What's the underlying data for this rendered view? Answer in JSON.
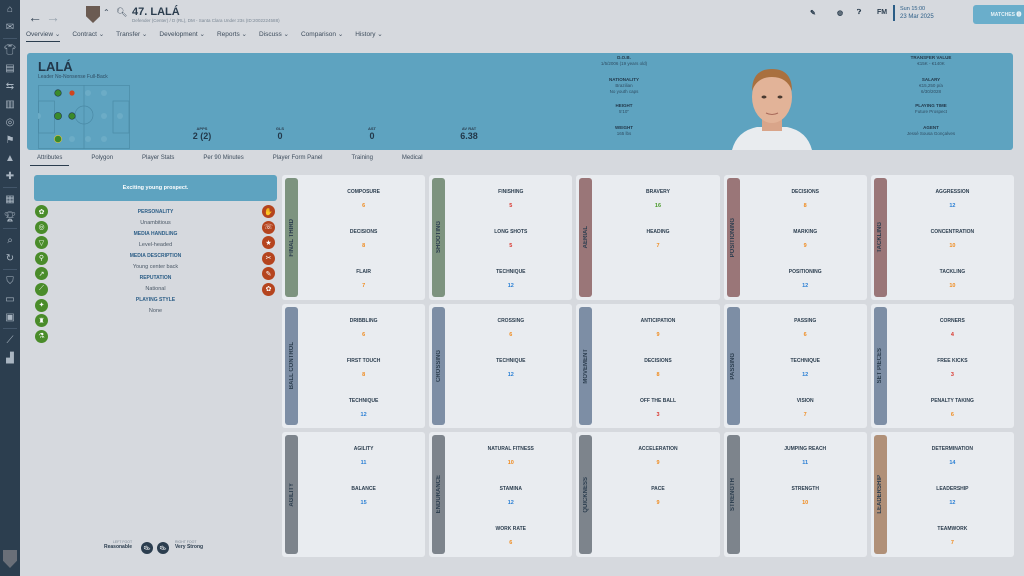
{
  "header": {
    "title": "47. LALÁ",
    "subtitle": "Defender (Center) / D (RL), DM - Santa Clara Under 23s (ID:2002224588)",
    "menu": [
      "Overview ⌄",
      "Contract ⌄",
      "Transfer ⌄",
      "Development ⌄",
      "Reports ⌄",
      "Discuss ⌄",
      "Comparison ⌄",
      "History ⌄"
    ],
    "fm": "FM",
    "time": "Sun 15:00",
    "date": "23 Mar 2025",
    "matches": "MATCHES ⓿"
  },
  "player": {
    "name": "LALÁ",
    "role": "Leader No-Nonsense Full-Back",
    "stats": [
      {
        "label": "APPS",
        "value": "2 (2)"
      },
      {
        "label": "GLS",
        "value": "0"
      },
      {
        "label": "AST",
        "value": "0"
      },
      {
        "label": "AV RAT",
        "value": "6.38"
      }
    ],
    "info_mid": [
      {
        "label": "D.O.B.",
        "lines": [
          "1/5/2006 (19 years old)"
        ]
      },
      {
        "label": "NATIONALITY",
        "lines": [
          "Brazilian",
          "No youth caps"
        ]
      },
      {
        "label": "HEIGHT",
        "lines": [
          "5'10\""
        ]
      },
      {
        "label": "WEIGHT",
        "lines": [
          "165 lbs"
        ]
      }
    ],
    "info_right": [
      {
        "label": "TRANSFER VALUE",
        "lines": [
          "€15K - €140K"
        ]
      },
      {
        "label": "SALARY",
        "lines": [
          "€15,250 p/a",
          "6/30/2028"
        ]
      },
      {
        "label": "PLAYING TIME",
        "lines": [
          "Future Prospect"
        ]
      },
      {
        "label": "AGENT",
        "lines": [
          "Jessé Sousa Gonçalves"
        ]
      }
    ]
  },
  "tabs": [
    "Attributes",
    "Polygon",
    "Player Stats",
    "Per 90 Minutes",
    "Player Form Panel",
    "Training",
    "Medical"
  ],
  "left": {
    "banner": "Exciting young prospect.",
    "traits": [
      {
        "h": "PERSONALITY",
        "t": "Unambitious"
      },
      {
        "h": "MEDIA HANDLING",
        "t": "Level-headed"
      },
      {
        "h": "MEDIA DESCRIPTION",
        "t": "Young center back"
      },
      {
        "h": "REPUTATION",
        "t": "National"
      },
      {
        "h": "PLAYING STYLE",
        "t": "None"
      }
    ],
    "left_foot_label": "LEFT FOOT",
    "left_foot": "Reasonable",
    "right_foot_label": "RIGHT FOOT",
    "right_foot": "Very Strong"
  },
  "colors": {
    "low": "#d9342b",
    "mid": "#f08a1c",
    "good": "#2a7fd4",
    "high": "#4a9a2a"
  },
  "cards": [
    {
      "title": "FINAL THIRD",
      "color": "#7d937f",
      "attrs": [
        [
          "COMPOSURE",
          6
        ],
        [
          "DECISIONS",
          8
        ],
        [
          "FLAIR",
          7
        ]
      ]
    },
    {
      "title": "SHOOTING",
      "color": "#7d937f",
      "attrs": [
        [
          "FINISHING",
          5
        ],
        [
          "LONG SHOTS",
          5
        ],
        [
          "TECHNIQUE",
          12
        ]
      ]
    },
    {
      "title": "AERIAL",
      "color": "#9a7678",
      "attrs": [
        [
          "BRAVERY",
          16
        ],
        [
          "HEADING",
          7
        ]
      ]
    },
    {
      "title": "POSITIONING",
      "color": "#9a7678",
      "attrs": [
        [
          "DECISIONS",
          8
        ],
        [
          "MARKING",
          9
        ],
        [
          "POSITIONING",
          12
        ]
      ]
    },
    {
      "title": "TACKLING",
      "color": "#9a7678",
      "attrs": [
        [
          "AGGRESSION",
          12
        ],
        [
          "CONCENTRATION",
          10
        ],
        [
          "TACKLING",
          10
        ]
      ]
    },
    {
      "title": "BALL CONTROL",
      "color": "#7d8ea5",
      "attrs": [
        [
          "DRIBBLING",
          6
        ],
        [
          "FIRST TOUCH",
          8
        ],
        [
          "TECHNIQUE",
          12
        ]
      ]
    },
    {
      "title": "CROSSING",
      "color": "#7d8ea5",
      "attrs": [
        [
          "CROSSING",
          6
        ],
        [
          "TECHNIQUE",
          12
        ]
      ]
    },
    {
      "title": "MOVEMENT",
      "color": "#7d8ea5",
      "attrs": [
        [
          "ANTICIPATION",
          9
        ],
        [
          "DECISIONS",
          8
        ],
        [
          "OFF THE BALL",
          3
        ]
      ]
    },
    {
      "title": "PASSING",
      "color": "#7d8ea5",
      "attrs": [
        [
          "PASSING",
          6
        ],
        [
          "TECHNIQUE",
          12
        ],
        [
          "VISION",
          7
        ]
      ]
    },
    {
      "title": "SET PIECES",
      "color": "#7d8ea5",
      "attrs": [
        [
          "CORNERS",
          4
        ],
        [
          "FREE KICKS",
          3
        ],
        [
          "PENALTY TAKING",
          6
        ]
      ]
    },
    {
      "title": "AGILITY",
      "color": "#7d848c",
      "attrs": [
        [
          "AGILITY",
          11
        ],
        [
          "BALANCE",
          15
        ]
      ]
    },
    {
      "title": "ENDURANCE",
      "color": "#7d848c",
      "attrs": [
        [
          "NATURAL FITNESS",
          10
        ],
        [
          "STAMINA",
          12
        ],
        [
          "WORK RATE",
          6
        ]
      ]
    },
    {
      "title": "QUICKNESS",
      "color": "#7d848c",
      "attrs": [
        [
          "ACCELERATION",
          9
        ],
        [
          "PACE",
          9
        ]
      ]
    },
    {
      "title": "STRENGTH",
      "color": "#7d848c",
      "attrs": [
        [
          "JUMPING REACH",
          11
        ],
        [
          "STRENGTH",
          10
        ]
      ]
    },
    {
      "title": "LEADERSHIP",
      "color": "#b09078",
      "attrs": [
        [
          "DETERMINATION",
          14
        ],
        [
          "LEADERSHIP",
          12
        ],
        [
          "TEAMWORK",
          7
        ]
      ]
    }
  ]
}
